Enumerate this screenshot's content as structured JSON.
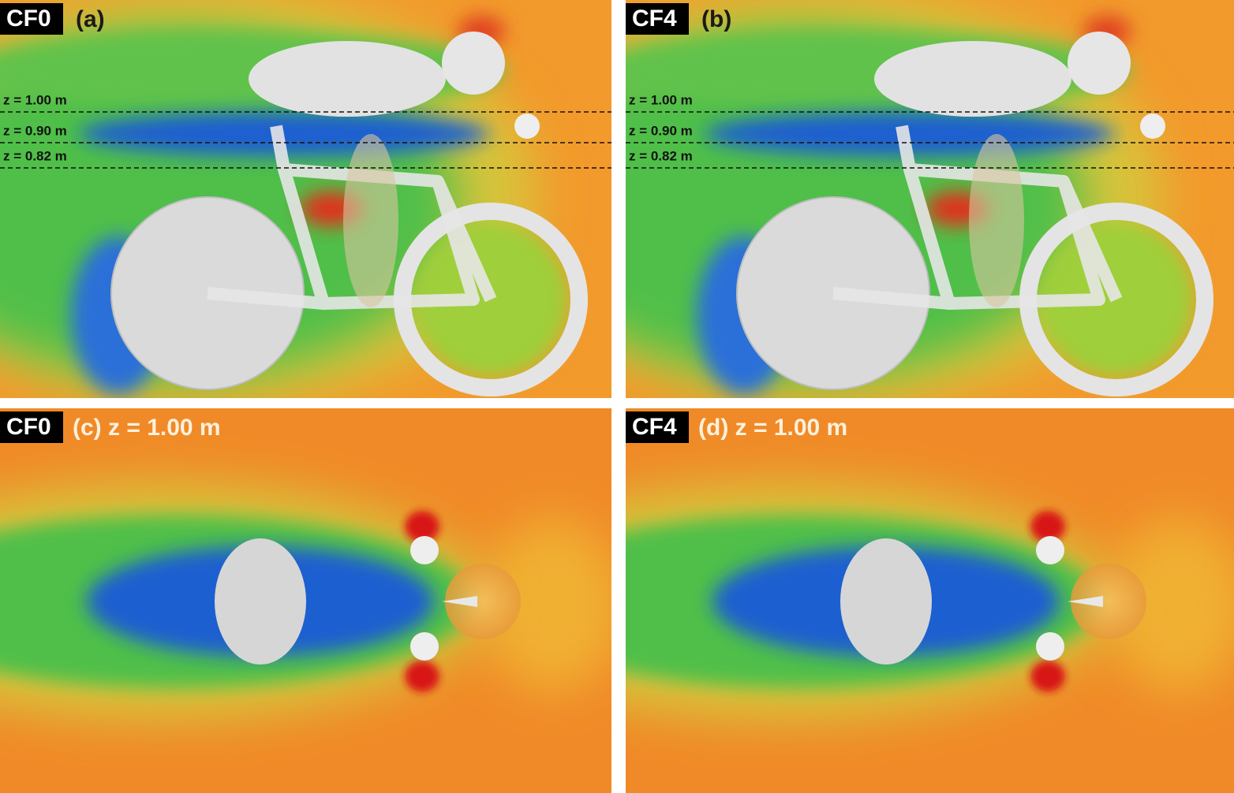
{
  "panels": [
    {
      "badge": "CF0",
      "label": "(a)",
      "levels": [
        "z = 1.00 m",
        "z = 0.90 m",
        "z = 0.82 m"
      ]
    },
    {
      "badge": "CF4",
      "label": "(b)",
      "levels": [
        "z = 1.00 m",
        "z = 0.90 m",
        "z = 0.82 m"
      ]
    },
    {
      "badge": "CF0",
      "label": "(c) z = 1.00 m"
    },
    {
      "badge": "CF4",
      "label": "(d) z = 1.00 m"
    }
  ]
}
